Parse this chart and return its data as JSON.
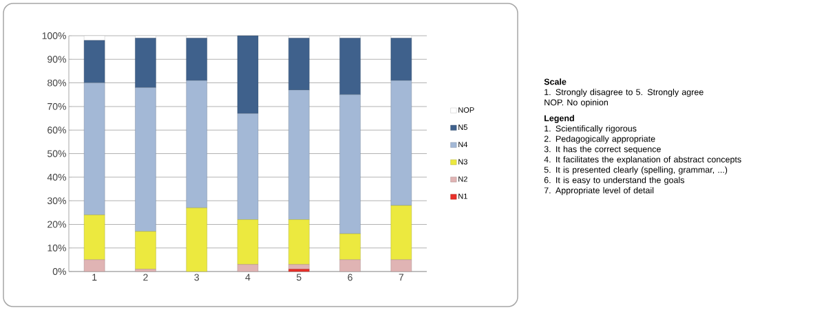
{
  "chart_data": {
    "type": "bar",
    "stacked": true,
    "categories": [
      "1",
      "2",
      "3",
      "4",
      "5",
      "6",
      "7"
    ],
    "series": [
      {
        "name": "N1",
        "color": "#e8302a",
        "values": [
          0,
          0,
          0,
          0,
          1,
          0,
          0
        ]
      },
      {
        "name": "N2",
        "color": "#e0b4b4",
        "values": [
          5,
          1,
          0,
          3,
          2,
          5,
          5
        ]
      },
      {
        "name": "N3",
        "color": "#ece93f",
        "values": [
          19,
          16,
          27,
          19,
          19,
          11,
          23
        ]
      },
      {
        "name": "N4",
        "color": "#a3b8d6",
        "values": [
          56,
          61,
          54,
          45,
          55,
          59,
          53
        ]
      },
      {
        "name": "N5",
        "color": "#3f618c",
        "values": [
          18,
          21,
          18,
          33,
          22,
          24,
          18
        ]
      },
      {
        "name": "NOP",
        "color": "#ffffff",
        "values": [
          2,
          1,
          1,
          0,
          1,
          1,
          1
        ]
      }
    ],
    "ylim": [
      0,
      100
    ],
    "yticks": [
      {
        "value": 0,
        "label": "0%"
      },
      {
        "value": 10,
        "label": "10%"
      },
      {
        "value": 20,
        "label": "20%"
      },
      {
        "value": 30,
        "label": "30%"
      },
      {
        "value": 40,
        "label": "40%"
      },
      {
        "value": 50,
        "label": "50%"
      },
      {
        "value": 60,
        "label": "60%"
      },
      {
        "value": 70,
        "label": "70%"
      },
      {
        "value": 80,
        "label": "80%"
      },
      {
        "value": 90,
        "label": "90%"
      },
      {
        "value": 100,
        "label": "100%"
      }
    ],
    "grid": "y",
    "legend": "right",
    "annotations": [
      "Scale",
      "1. Strongly disagree to 5. Strongly agree",
      "NOP. No opinion",
      "Legend",
      "1. Scientifically rigorous",
      "2. Pedagogically appropriate",
      "3. It has the correct sequence",
      "4. It facilitates the explanation of abstract concepts",
      "5. It is presented clearly (spelling, grammar, ...)",
      "6. It is easy to understand the goals",
      "7. Appropriate level of detail"
    ]
  }
}
